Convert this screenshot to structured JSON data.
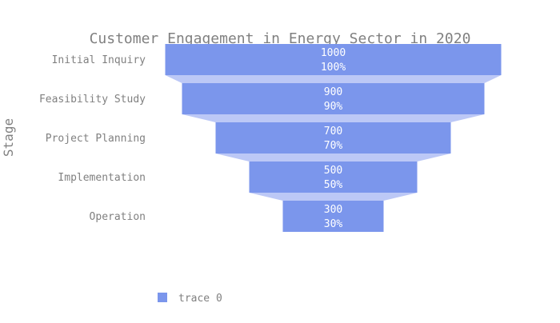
{
  "chart_data": {
    "type": "funnel",
    "title": "Customer Engagement in Energy Sector in 2020",
    "ylabel": "Stage",
    "categories": [
      "Initial Inquiry",
      "Feasibility Study",
      "Project Planning",
      "Implementation",
      "Operation"
    ],
    "series": [
      {
        "name": "trace 0",
        "values": [
          1000,
          900,
          700,
          500,
          300
        ],
        "percent_labels": [
          "100%",
          "90%",
          "70%",
          "50%",
          "30%"
        ]
      }
    ],
    "legend": "bottom-left",
    "grid": false
  },
  "colors": {
    "bar": "#7b96ec",
    "connector": "#bcc8f6",
    "text": "#808080",
    "label": "#ffffff"
  }
}
